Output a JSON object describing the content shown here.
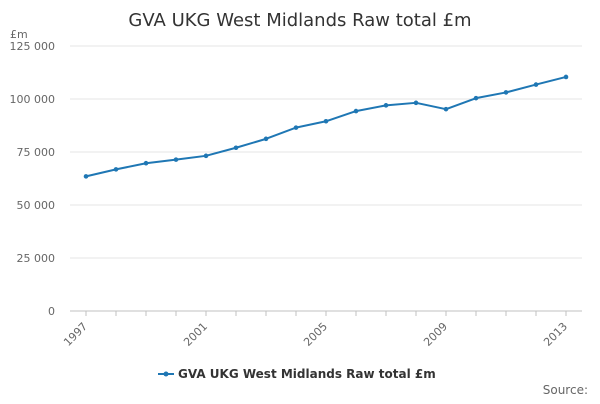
{
  "chart_data": {
    "type": "line",
    "title": "GVA UKG West Midlands Raw total £m",
    "ylabel": "£m",
    "xlabel": "",
    "x": [
      1997,
      1998,
      1999,
      2000,
      2001,
      2002,
      2003,
      2004,
      2005,
      2006,
      2007,
      2008,
      2009,
      2010,
      2011,
      2012,
      2013
    ],
    "x_tick_labels": [
      "1997",
      "2001",
      "2005",
      "2009",
      "2013"
    ],
    "y_tick_labels": [
      "0",
      "25 000",
      "50 000",
      "75 000",
      "100 000",
      "125 000"
    ],
    "y_ticks": [
      0,
      25000,
      50000,
      75000,
      100000,
      125000
    ],
    "ylim": [
      0,
      125000
    ],
    "xlim": [
      1997,
      2013
    ],
    "grid": true,
    "legend_position": "bottom",
    "series": [
      {
        "name": "GVA UKG West Midlands Raw total £m",
        "color": "#1f77b4",
        "values": [
          63500,
          66800,
          69700,
          71400,
          73200,
          77000,
          81200,
          86500,
          89500,
          94300,
          97000,
          98200,
          95200,
          100400,
          103100,
          106800,
          110400
        ]
      }
    ],
    "source_label": "Source:"
  }
}
